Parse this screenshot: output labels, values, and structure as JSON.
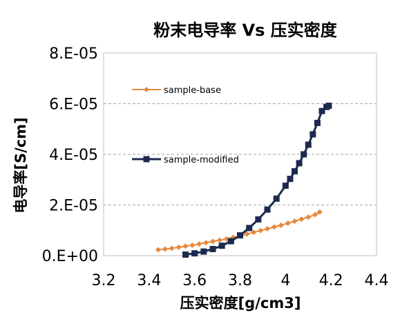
{
  "chart_data": {
    "type": "scatter",
    "title": "粉末电导率 Vs 压实密度",
    "xlabel": "压实密度[g/cm3]",
    "ylabel": "电导率[S/cm]",
    "xlim": [
      3.2,
      4.4
    ],
    "ylim": [
      0,
      8e-05
    ],
    "x_ticks": [
      3.2,
      3.4,
      3.6,
      3.8,
      4.0,
      4.2,
      4.4
    ],
    "x_tick_labels": [
      "3.2",
      "3.4",
      "3.6",
      "3.8",
      "4",
      "4.2",
      "4.4"
    ],
    "y_ticks": [
      0,
      2e-05,
      4e-05,
      6e-05,
      8e-05
    ],
    "y_tick_labels": [
      "0.E+00",
      "2.E-05",
      "4.E-05",
      "6.E-05",
      "8.E-05"
    ],
    "grid": "horizontal dashed",
    "legend_placement": "inside-left",
    "series": [
      {
        "name": "sample-base",
        "color": "#E8883A",
        "marker": "diamond",
        "x": [
          3.44,
          3.47,
          3.5,
          3.53,
          3.56,
          3.59,
          3.62,
          3.65,
          3.68,
          3.71,
          3.74,
          3.77,
          3.8,
          3.83,
          3.86,
          3.89,
          3.92,
          3.95,
          3.98,
          4.01,
          4.04,
          4.07,
          4.1,
          4.13,
          4.15
        ],
        "y": [
          2.3e-06,
          2.6e-06,
          2.9e-06,
          3.3e-06,
          3.7e-06,
          4.1e-06,
          4.6e-06,
          5.1e-06,
          5.6e-06,
          6.1e-06,
          6.6e-06,
          7.2e-06,
          7.8e-06,
          8.5e-06,
          9.2e-06,
          9.9e-06,
          1.06e-05,
          1.13e-05,
          1.2e-05,
          1.28e-05,
          1.36e-05,
          1.44e-05,
          1.52e-05,
          1.62e-05,
          1.72e-05
        ]
      },
      {
        "name": "sample-modified",
        "color": "#1B2A4E",
        "marker": "square",
        "x": [
          3.56,
          3.6,
          3.64,
          3.68,
          3.72,
          3.76,
          3.8,
          3.84,
          3.88,
          3.92,
          3.96,
          4.0,
          4.02,
          4.04,
          4.06,
          4.08,
          4.1,
          4.12,
          4.14,
          4.16,
          4.18,
          4.19
        ],
        "y": [
          4e-07,
          9e-07,
          1.6e-06,
          2.6e-06,
          3.9e-06,
          5.7e-06,
          8e-06,
          1.09e-05,
          1.43e-05,
          1.82e-05,
          2.25e-05,
          2.76e-05,
          3.03e-05,
          3.33e-05,
          3.65e-05,
          4e-05,
          4.38e-05,
          4.79e-05,
          5.24e-05,
          5.71e-05,
          5.87e-05,
          5.92e-05
        ]
      }
    ]
  }
}
